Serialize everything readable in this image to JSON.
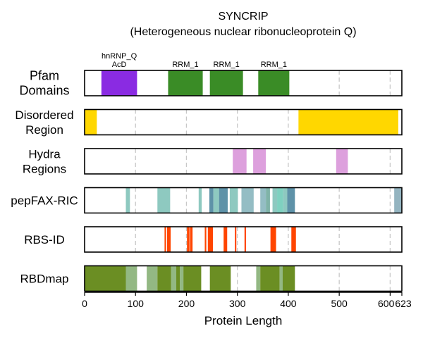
{
  "chart_data": {
    "type": "track",
    "title": "SYNCRIP",
    "subtitle": "(Heterogeneous nuclear ribonucleoprotein Q)",
    "xlabel": "Protein Length",
    "xlim": [
      0,
      623
    ],
    "ticks": [
      0,
      100,
      200,
      300,
      400,
      500,
      600,
      623
    ],
    "tick_labels": [
      "0",
      "100",
      "200",
      "300",
      "400",
      "500",
      "600",
      "623"
    ],
    "gridlines": [
      100,
      200,
      300,
      400,
      500,
      600
    ],
    "tracks": [
      {
        "label_lines": [
          "Pfam",
          "Domains"
        ],
        "segments": [
          {
            "start": 33,
            "end": 103,
            "color": "#8a2be2",
            "label_lines": [
              "hnRNP_Q",
              "AcD"
            ]
          },
          {
            "start": 164,
            "end": 232,
            "color": "#3a8c26",
            "label_lines": [
              "RRM_1"
            ]
          },
          {
            "start": 246,
            "end": 311,
            "color": "#3a8c26",
            "label_lines": [
              "RRM_1"
            ]
          },
          {
            "start": 341,
            "end": 402,
            "color": "#3a8c26",
            "label_lines": [
              "RRM_1"
            ]
          }
        ]
      },
      {
        "label_lines": [
          "Disordered",
          "Region"
        ],
        "segments": [
          {
            "start": 0,
            "end": 24,
            "color": "#ffd700"
          },
          {
            "start": 420,
            "end": 616,
            "color": "#ffd700"
          }
        ]
      },
      {
        "label_lines": [
          "Hydra",
          "Regions"
        ],
        "segments": [
          {
            "start": 291,
            "end": 318,
            "color": "#dda0dd"
          },
          {
            "start": 331,
            "end": 356,
            "color": "#dda0dd"
          },
          {
            "start": 494,
            "end": 517,
            "color": "#dda0dd"
          }
        ]
      },
      {
        "label_lines": [
          "pepFAX-RIC"
        ],
        "segments": [
          {
            "start": 81,
            "end": 89,
            "color": "#8ec9c0"
          },
          {
            "start": 143,
            "end": 168,
            "color": "#8ec9c0"
          },
          {
            "start": 224,
            "end": 230,
            "color": "#8ec9c0"
          },
          {
            "start": 245,
            "end": 253,
            "color": "#5e92a8"
          },
          {
            "start": 253,
            "end": 264,
            "color": "#8ec9c0"
          },
          {
            "start": 264,
            "end": 281,
            "color": "#5e92a8"
          },
          {
            "start": 285,
            "end": 301,
            "color": "#8ec9c0"
          },
          {
            "start": 308,
            "end": 332,
            "color": "#94bdc4"
          },
          {
            "start": 345,
            "end": 356,
            "color": "#94bdc4"
          },
          {
            "start": 356,
            "end": 364,
            "color": "#7fb3a8"
          },
          {
            "start": 369,
            "end": 378,
            "color": "#8ec9c0"
          },
          {
            "start": 378,
            "end": 390,
            "color": "#7fd1c0"
          },
          {
            "start": 390,
            "end": 398,
            "color": "#8ec9c0"
          },
          {
            "start": 398,
            "end": 413,
            "color": "#5e92a8"
          },
          {
            "start": 608,
            "end": 623,
            "color": "#94b4c0"
          }
        ]
      },
      {
        "label_lines": [
          "RBS-ID"
        ],
        "segments": [
          {
            "start": 157,
            "end": 160,
            "color": "#ff4500"
          },
          {
            "start": 162,
            "end": 169,
            "color": "#ff4500"
          },
          {
            "start": 201,
            "end": 206,
            "color": "#ff4500"
          },
          {
            "start": 207,
            "end": 212,
            "color": "#ff4500"
          },
          {
            "start": 236,
            "end": 239,
            "color": "#ff4500"
          },
          {
            "start": 242,
            "end": 252,
            "color": "#ff4500"
          },
          {
            "start": 273,
            "end": 280,
            "color": "#ff4500"
          },
          {
            "start": 295,
            "end": 298,
            "color": "#ff4500"
          },
          {
            "start": 314,
            "end": 317,
            "color": "#ff4500"
          },
          {
            "start": 365,
            "end": 376,
            "color": "#ff4500"
          },
          {
            "start": 406,
            "end": 415,
            "color": "#ff4500"
          }
        ]
      },
      {
        "label_lines": [
          "RBDmap"
        ],
        "segments": [
          {
            "start": 0,
            "end": 81,
            "color": "#6b8e23"
          },
          {
            "start": 81,
            "end": 103,
            "color": "#93b883"
          },
          {
            "start": 122,
            "end": 143,
            "color": "#93b883"
          },
          {
            "start": 143,
            "end": 170,
            "color": "#6b8e23"
          },
          {
            "start": 170,
            "end": 180,
            "color": "#93b883"
          },
          {
            "start": 180,
            "end": 187,
            "color": "#6b8e23"
          },
          {
            "start": 187,
            "end": 194,
            "color": "#93b883"
          },
          {
            "start": 194,
            "end": 229,
            "color": "#6b8e23"
          },
          {
            "start": 246,
            "end": 287,
            "color": "#6b8e23"
          },
          {
            "start": 337,
            "end": 345,
            "color": "#93b883"
          },
          {
            "start": 345,
            "end": 383,
            "color": "#6b8e23"
          },
          {
            "start": 383,
            "end": 389,
            "color": "#93b883"
          },
          {
            "start": 389,
            "end": 413,
            "color": "#6b8e23"
          }
        ]
      }
    ]
  }
}
